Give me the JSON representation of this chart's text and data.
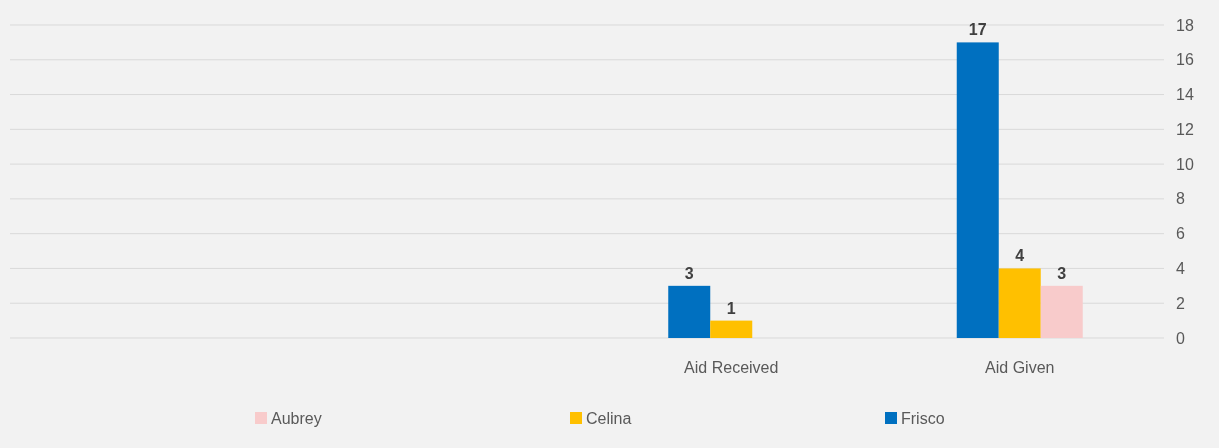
{
  "chart_data": {
    "type": "bar",
    "categories": [
      null,
      null,
      "Aid Received",
      "Aid Given"
    ],
    "series": [
      {
        "name": "Aubrey",
        "color": "#f8cbcb",
        "values": [
          null,
          null,
          null,
          3
        ]
      },
      {
        "name": "Celina",
        "color": "#ffc000",
        "values": [
          null,
          null,
          1,
          4
        ]
      },
      {
        "name": "Frisco",
        "color": "#0070c0",
        "values": [
          null,
          null,
          3,
          17
        ]
      }
    ],
    "ylim": [
      0,
      18
    ],
    "yticks": [
      0,
      2,
      4,
      6,
      8,
      10,
      12,
      14,
      16,
      18
    ],
    "grid": "y",
    "legend": "bottom",
    "data_labels": true
  }
}
